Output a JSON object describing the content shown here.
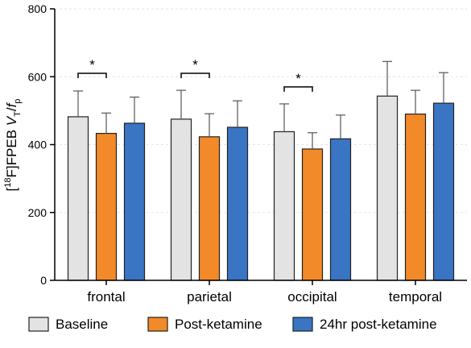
{
  "chart_data": {
    "type": "bar",
    "categories": [
      "frontal",
      "parietal",
      "occipital",
      "temporal"
    ],
    "ylabel": {
      "prefix": "[",
      "isotope": "18",
      "element": "F]FPEB ",
      "var": "V",
      "var_sub": "T",
      "slash": "/",
      "frac": "f",
      "frac_sub": "p"
    },
    "ylim": [
      0,
      800
    ],
    "yticks": [
      "0",
      "200",
      "400",
      "600",
      "800"
    ],
    "grid": true,
    "legend_position": "bottom",
    "series": [
      {
        "name": "Baseline",
        "color": "#e3e3e3",
        "values": [
          482,
          475,
          438,
          543
        ],
        "errors": [
          76,
          85,
          82,
          102
        ]
      },
      {
        "name": "Post-ketamine",
        "color": "#f28a2a",
        "values": [
          433,
          423,
          387,
          490
        ],
        "errors": [
          60,
          68,
          48,
          70
        ]
      },
      {
        "name": "24hr post-ketamine",
        "color": "#3a75c4",
        "values": [
          463,
          451,
          417,
          522
        ],
        "errors": [
          77,
          78,
          70,
          90
        ]
      }
    ],
    "significance": [
      {
        "category": "frontal",
        "from": 0,
        "to": 1,
        "y": 610,
        "label": "*"
      },
      {
        "category": "parietal",
        "from": 0,
        "to": 1,
        "y": 610,
        "label": "*"
      },
      {
        "category": "occipital",
        "from": 0,
        "to": 1,
        "y": 570,
        "label": "*"
      }
    ]
  }
}
